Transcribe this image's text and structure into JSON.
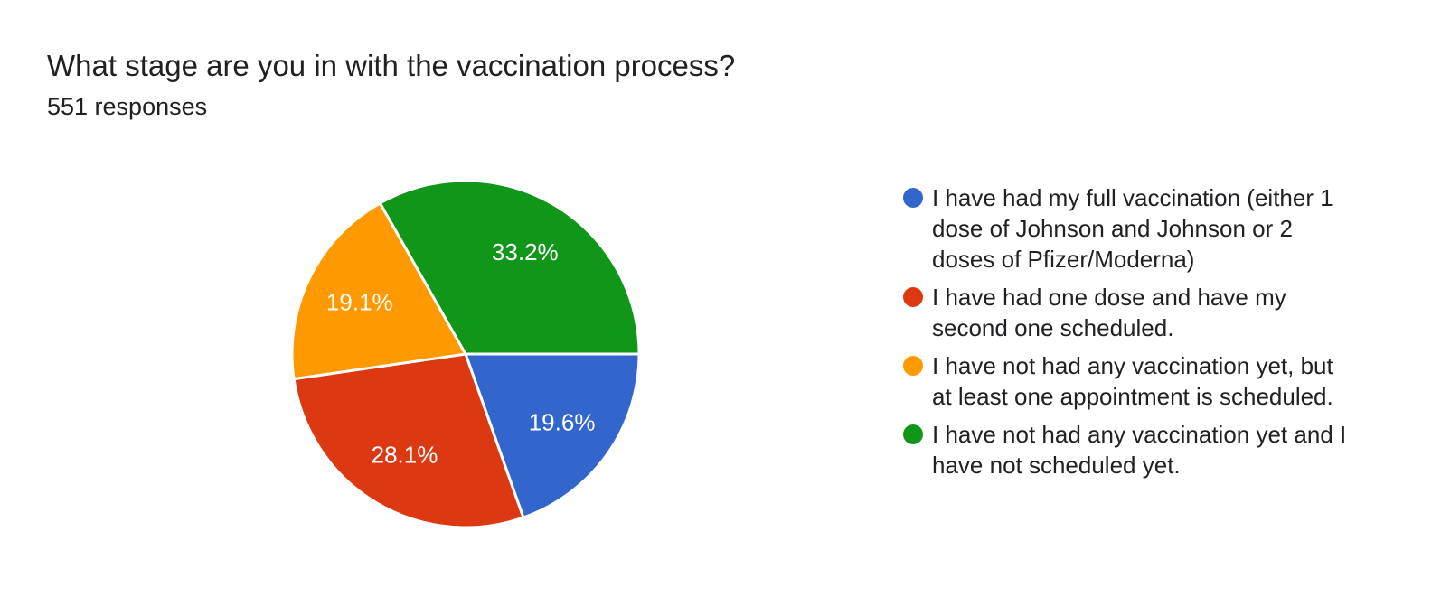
{
  "chart_data": {
    "type": "pie",
    "title": "What stage are you in with the vaccination process?",
    "subtitle": "551 responses",
    "total_responses": 551,
    "start_angle_deg": 0,
    "direction": "clockwise",
    "legend_position": "right",
    "slice_label_color": "#ffffff",
    "slice_separator_color": "#ffffff",
    "background_color": "#ffffff",
    "text_color": "#202124",
    "slices": [
      {
        "label": "I have had my full vaccination (either 1 dose of Johnson and Johnson or 2 doses of Pfizer/Moderna)",
        "pct": 19.6,
        "pct_label": "19.6%",
        "color": "#3366CC"
      },
      {
        "label": "I have had one dose and have my second one scheduled.",
        "pct": 28.1,
        "pct_label": "28.1%",
        "color": "#DC3912"
      },
      {
        "label": "I have not had any vaccination yet, but at least one appointment is scheduled.",
        "pct": 19.1,
        "pct_label": "19.1%",
        "color": "#FF9900"
      },
      {
        "label": "I have not had any vaccination yet and I have not scheduled yet.",
        "pct": 33.2,
        "pct_label": "33.2%",
        "color": "#109618"
      }
    ]
  }
}
